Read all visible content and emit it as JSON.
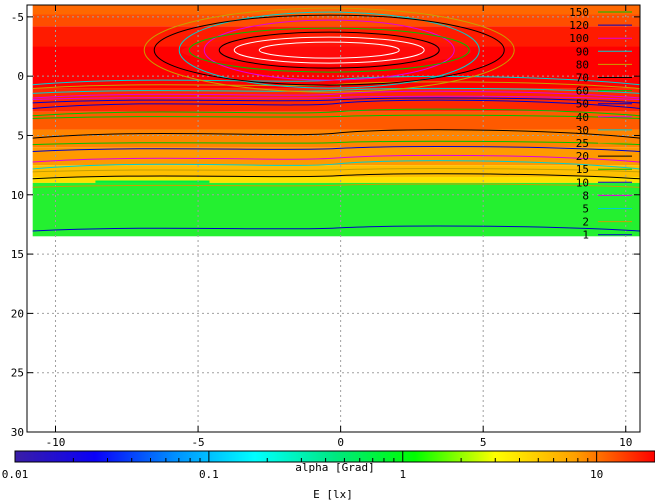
{
  "chart_data": {
    "type": "heatmap",
    "x_axis": {
      "range": [
        -11,
        10.5
      ],
      "ticks": [
        -10,
        -5,
        0,
        5,
        10
      ],
      "grid": true
    },
    "y_axis": {
      "range": [
        -6,
        30
      ],
      "reversed": true,
      "ticks": [
        -5,
        0,
        5,
        10,
        15,
        20,
        25,
        30
      ],
      "grid": true
    },
    "data_extent": {
      "x": [
        -10.8,
        10.5
      ],
      "y": [
        -6,
        13.5
      ]
    },
    "bands": [
      {
        "y0": -6.0,
        "y1": -5.2,
        "value": 14
      },
      {
        "y0": -5.2,
        "y1": -4.2,
        "value": 16
      },
      {
        "y0": -4.2,
        "y1": -2.5,
        "value": 20
      },
      {
        "y0": -2.5,
        "y1": 1.0,
        "value": 22
      },
      {
        "y0": 1.0,
        "y1": 3.0,
        "value": 19
      },
      {
        "y0": 3.0,
        "y1": 4.5,
        "value": 15
      },
      {
        "y0": 4.5,
        "y1": 6.0,
        "value": 12
      },
      {
        "y0": 6.0,
        "y1": 7.5,
        "value": 10
      },
      {
        "y0": 7.5,
        "y1": 8.5,
        "value": 6
      },
      {
        "y0": 8.5,
        "y1": 9.0,
        "value": 4
      },
      {
        "y0": 9.0,
        "y1": 13.5,
        "value": 1.5
      }
    ],
    "contours": [
      {
        "level": "150",
        "color": "#00c000",
        "y": 5.6
      },
      {
        "level": "120",
        "color": "#0000c8",
        "y": 6.1
      },
      {
        "level": "100",
        "color": "#e000e0",
        "y": 6.9
      },
      {
        "level": "90",
        "color": "#00d0d0",
        "y": 7.4
      },
      {
        "level": "80",
        "color": "#c8a000",
        "y": 7.9
      },
      {
        "level": "70",
        "color": "#000000",
        "y": 8.4
      },
      {
        "level": "60",
        "color": "#00c000",
        "y": 3.0
      },
      {
        "level": "50",
        "color": "#0000c8",
        "y": 2.3
      },
      {
        "level": "40",
        "color": "#e000e0",
        "y": 1.8
      },
      {
        "level": "30",
        "color": "#00d0d0",
        "y": 1.2
      },
      {
        "level": "25",
        "color": "#c8a000",
        "y": 0.7
      },
      {
        "level": "20",
        "color": "#000000",
        "y": 4.8
      },
      {
        "level": "15",
        "color": "#00c000",
        "y": 3.4
      },
      {
        "level": "10",
        "color": "#0000c8",
        "y": 2.0
      },
      {
        "level": "8",
        "color": "#e000e0",
        "y": 1.5
      },
      {
        "level": "5",
        "color": "#00d0d0",
        "y": 0.3
      },
      {
        "level": "2",
        "color": "#c8a000",
        "y": 9.2
      },
      {
        "level": "1",
        "color": "#0000c8",
        "y": 12.8
      }
    ],
    "colorbar": {
      "range": [
        0.01,
        20
      ],
      "scale": "log",
      "tick_labels": [
        "0.01",
        "0.1",
        "1",
        "10"
      ],
      "tick_values": [
        0.01,
        0.1,
        1,
        10
      ],
      "label": "alpha [Grad]",
      "palette": [
        "#3a1ea6",
        "#0a00f8",
        "#0090ff",
        "#00ffff",
        "#00e880",
        "#00ff00",
        "#ffff00",
        "#ffa000",
        "#ff0000"
      ]
    },
    "xlabel": "E [lx]",
    "legend_position": "top-right"
  }
}
